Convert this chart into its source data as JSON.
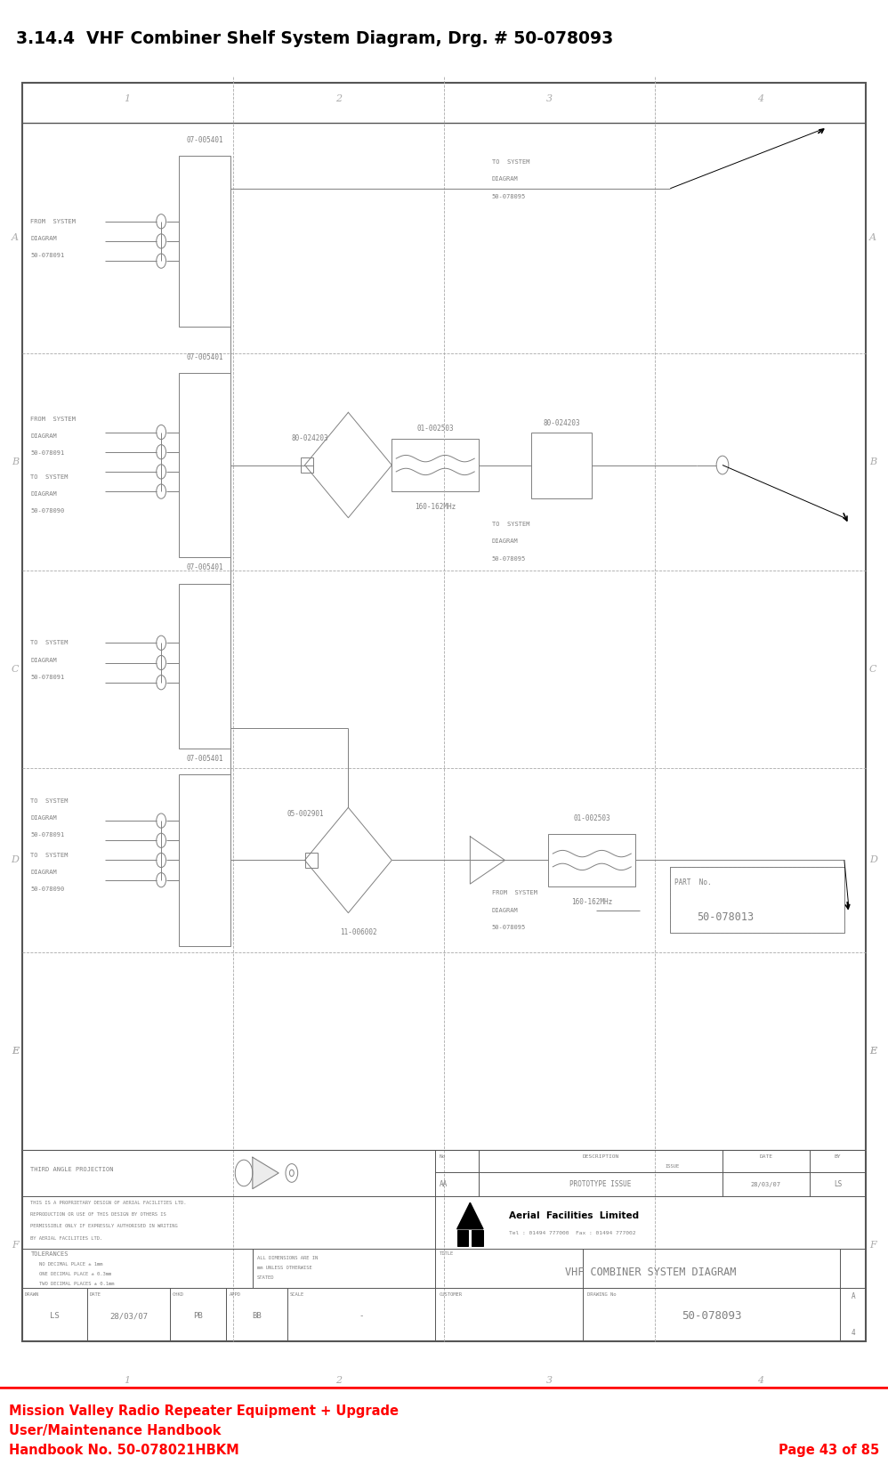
{
  "title": "3.14.4  VHF Combiner Shelf System Diagram, Drg. # 50-078093",
  "footer_line1": "Mission Valley Radio Repeater Equipment + Upgrade",
  "footer_line2": "User/Maintenance Handbook",
  "footer_line3": "Handbook No. 50-078021HBKM",
  "footer_page": "Page 43 of 85",
  "footer_color": "#ff0000",
  "bg_color": "#ffffff",
  "gc": "#808080",
  "dark": "#555555",
  "light": "#aaaaaa"
}
